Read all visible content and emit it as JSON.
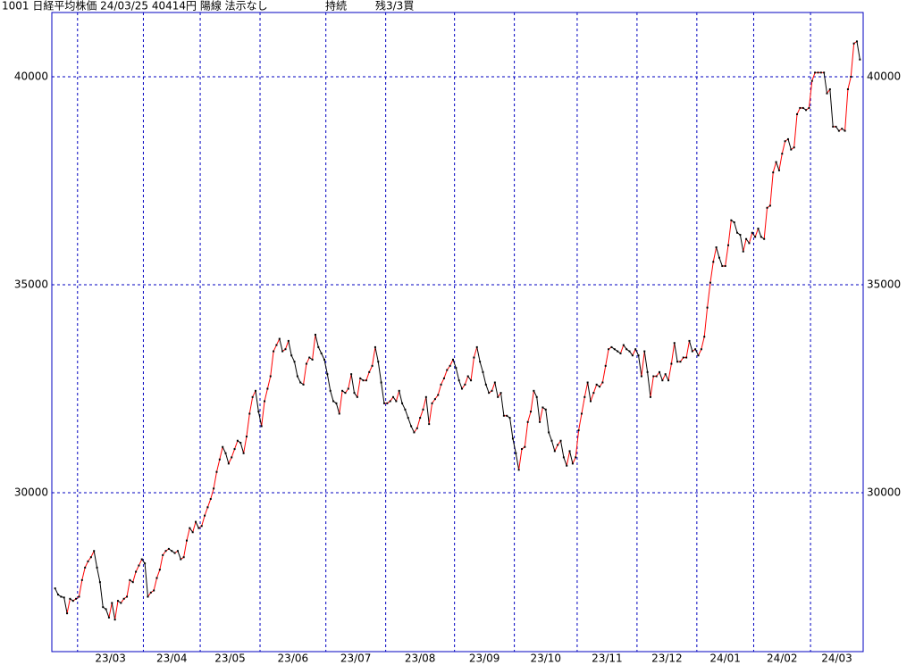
{
  "chart_data": {
    "type": "line",
    "title": "1001 日経平均株価 24/03/25 40414円 陽線 法示なし",
    "status": "持続",
    "position": "残3/3買",
    "ylim": [
      26180,
      41545
    ],
    "yticks": [
      30000,
      35000,
      40000
    ],
    "xticks": [
      {
        "value": 8,
        "label": "23/03"
      },
      {
        "value": 30,
        "label": "23/04"
      },
      {
        "value": 49,
        "label": "23/05"
      },
      {
        "value": 69,
        "label": "23/06"
      },
      {
        "value": 91,
        "label": "23/07"
      },
      {
        "value": 111,
        "label": "23/08"
      },
      {
        "value": 134,
        "label": "23/09"
      },
      {
        "value": 154,
        "label": "23/10"
      },
      {
        "value": 175,
        "label": "23/11"
      },
      {
        "value": 195,
        "label": "23/12"
      },
      {
        "value": 215,
        "label": "24/01"
      },
      {
        "value": 234,
        "label": "24/02"
      },
      {
        "value": 253,
        "label": "24/03"
      }
    ],
    "grid": true,
    "frame_color": "#0000c0",
    "up_color": "#ff0000",
    "down_color": "#000000",
    "marker_color": "#000000",
    "values": [
      27700,
      27550,
      27500,
      27480,
      27100,
      27450,
      27400,
      27450,
      27500,
      27900,
      28200,
      28350,
      28450,
      28600,
      28200,
      27850,
      27250,
      27200,
      27000,
      27350,
      26950,
      27400,
      27350,
      27450,
      27500,
      27900,
      27850,
      28100,
      28250,
      28400,
      28300,
      27500,
      27600,
      27650,
      27950,
      28150,
      28500,
      28600,
      28650,
      28600,
      28550,
      28600,
      28400,
      28450,
      28850,
      29150,
      29050,
      29300,
      29150,
      29200,
      29450,
      29650,
      29850,
      30100,
      30500,
      30800,
      31100,
      30950,
      30700,
      30850,
      31050,
      31250,
      31200,
      30950,
      31350,
      31900,
      32300,
      32450,
      31950,
      31600,
      32200,
      32500,
      32800,
      33400,
      33550,
      33700,
      33400,
      33450,
      33650,
      33300,
      33150,
      32800,
      32650,
      32600,
      33100,
      33250,
      33200,
      33800,
      33500,
      33350,
      33200,
      32850,
      32450,
      32200,
      32150,
      31900,
      32450,
      32400,
      32500,
      32850,
      32400,
      32300,
      32750,
      32700,
      32700,
      32900,
      33050,
      33500,
      33150,
      32650,
      32150,
      32150,
      32200,
      32300,
      32200,
      32450,
      32150,
      32000,
      31800,
      31600,
      31450,
      31550,
      31800,
      32000,
      32300,
      31650,
      32150,
      32250,
      32350,
      32600,
      32750,
      32950,
      33050,
      33200,
      33000,
      32700,
      32500,
      32600,
      32800,
      32700,
      33250,
      33500,
      33150,
      32900,
      32600,
      32400,
      32450,
      32650,
      32300,
      32400,
      31850,
      31850,
      31800,
      31300,
      30950,
      30550,
      31050,
      31100,
      31700,
      31950,
      32450,
      32300,
      31700,
      32050,
      32000,
      31450,
      31250,
      31000,
      31150,
      31250,
      30850,
      30650,
      31000,
      30700,
      30850,
      31500,
      31900,
      32300,
      32650,
      32200,
      32400,
      32600,
      32550,
      32650,
      33050,
      33450,
      33500,
      33450,
      33400,
      33350,
      33550,
      33450,
      33400,
      33300,
      33450,
      33300,
      32800,
      33400,
      32900,
      32300,
      32800,
      32800,
      32900,
      32700,
      32850,
      32700,
      33100,
      33600,
      33150,
      33150,
      33250,
      33250,
      33650,
      33400,
      33450,
      33300,
      33450,
      33750,
      34450,
      35050,
      35550,
      35900,
      35650,
      35450,
      35450,
      35950,
      36550,
      36500,
      36250,
      36200,
      35800,
      36100,
      36000,
      36250,
      36150,
      36350,
      36150,
      36100,
      36850,
      36900,
      37700,
      37950,
      37750,
      38150,
      38450,
      38500,
      38250,
      38300,
      39100,
      39250,
      39250,
      39200,
      39250,
      39900,
      40100,
      40100,
      40100,
      40100,
      39600,
      39700,
      38800,
      38800,
      38700,
      38750,
      38700,
      39700,
      40000,
      40800,
      40850,
      40414
    ]
  }
}
